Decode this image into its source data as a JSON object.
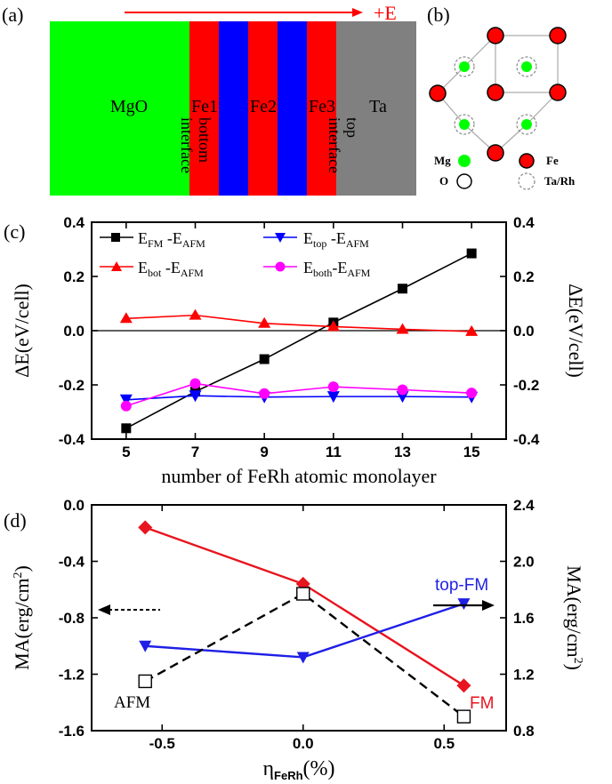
{
  "colors": {
    "red": "#ff0000",
    "blue": "#0000ff",
    "green": "#00ff00",
    "gray": "#808080",
    "black": "#000000",
    "magenta": "#ff00ff",
    "dred": "#e8141e",
    "dblue": "#1f1fe6"
  },
  "panel_a": {
    "label": "(a)",
    "field": "+E",
    "layers": [
      {
        "name": "MgO",
        "color": "#00ff00"
      },
      {
        "name": "Fe1",
        "color": "#ff0000"
      },
      {
        "name": "",
        "color": "#0000ff"
      },
      {
        "name": "Fe2",
        "color": "#ff0000"
      },
      {
        "name": "",
        "color": "#0000ff"
      },
      {
        "name": "Fe3",
        "color": "#ff0000"
      },
      {
        "name": "Ta",
        "color": "#808080"
      }
    ],
    "bottom_interface": [
      "bottom",
      "interface"
    ],
    "top_interface": [
      "top",
      "interface"
    ]
  },
  "panel_b": {
    "label": "(b)",
    "legend": [
      {
        "name": "Mg",
        "kind": "green-dot"
      },
      {
        "name": "Fe",
        "kind": "red-dot"
      },
      {
        "name": "O",
        "kind": "black-circle"
      },
      {
        "name": "Ta/Rh",
        "kind": "dashed-circle"
      }
    ]
  },
  "chart_data": [
    {
      "type": "line",
      "label": "(c)",
      "xlabel": "number of FeRh atomic monolayer",
      "ylabel": "ΔE(eV/cell)",
      "ylabel_right": "ΔE(eV/cell)",
      "x": [
        5,
        7,
        9,
        11,
        13,
        15
      ],
      "xticks": [
        "5",
        "7",
        "9",
        "11",
        "13",
        "15"
      ],
      "ylim": [
        -0.4,
        0.4
      ],
      "yticks": [
        "-0.4",
        "-0.2",
        "0.0",
        "0.2",
        "0.4"
      ],
      "legend": "top",
      "series": [
        {
          "name": "E_FM - E_AFM",
          "main": "E",
          "sub1": "FM",
          "mid": " -E",
          "sub2": "AFM",
          "color": "#000000",
          "marker": "square",
          "values": [
            -0.36,
            -0.225,
            -0.105,
            0.03,
            0.155,
            0.285
          ]
        },
        {
          "name": "E_top - E_AFM",
          "main": "E",
          "sub1": "top",
          "mid": " -E",
          "sub2": "AFM",
          "color": "#0000ff",
          "marker": "triangle-down",
          "values": [
            -0.255,
            -0.24,
            -0.245,
            -0.243,
            -0.243,
            -0.245
          ]
        },
        {
          "name": "E_bot - E_AFM",
          "main": "E",
          "sub1": "bot",
          "mid": " -E",
          "sub2": "AFM",
          "color": "#ff0000",
          "marker": "triangle-up",
          "values": [
            0.045,
            0.057,
            0.027,
            0.015,
            0.005,
            -0.003
          ]
        },
        {
          "name": "E_both - E_AFM",
          "main": "E",
          "sub1": "both",
          "mid": "-E",
          "sub2": "AFM",
          "color": "#ff00ff",
          "marker": "circle",
          "values": [
            -0.278,
            -0.195,
            -0.232,
            -0.207,
            -0.218,
            -0.23
          ]
        }
      ]
    },
    {
      "type": "line",
      "label": "(d)",
      "xlabel_main": "η",
      "xlabel_sub": "FeRh",
      "xlabel_unit": "(%)",
      "ylabel": "MA(erg/cm",
      "ylabel_sup": "2",
      "ylabel_close": ")",
      "x": [
        -0.56,
        0.0,
        0.57
      ],
      "xlim": [
        -0.75,
        0.72
      ],
      "xticks": [
        "-0.5",
        "0.0",
        "0.5"
      ],
      "ylim_left": [
        -1.6,
        0.0
      ],
      "yticks_left": [
        "-1.6",
        "-1.2",
        "-0.8",
        "-0.4",
        "0.0"
      ],
      "ylim_right": [
        0.8,
        2.4
      ],
      "yticks_right": [
        "0.8",
        "1.2",
        "1.6",
        "2.0",
        "2.4"
      ],
      "series": [
        {
          "name": "FM",
          "axis": "right",
          "color": "#e8141e",
          "marker": "diamond",
          "values": [
            2.24,
            1.84,
            1.12
          ]
        },
        {
          "name": "top-FM",
          "axis": "right",
          "color": "#1f1fe6",
          "marker": "triangle-down",
          "values": [
            1.4,
            1.32,
            1.7
          ]
        },
        {
          "name": "AFM",
          "axis": "left",
          "color": "#000000",
          "marker": "open-square",
          "dashed": true,
          "values": [
            -1.25,
            -0.63,
            -1.5
          ]
        }
      ]
    }
  ]
}
